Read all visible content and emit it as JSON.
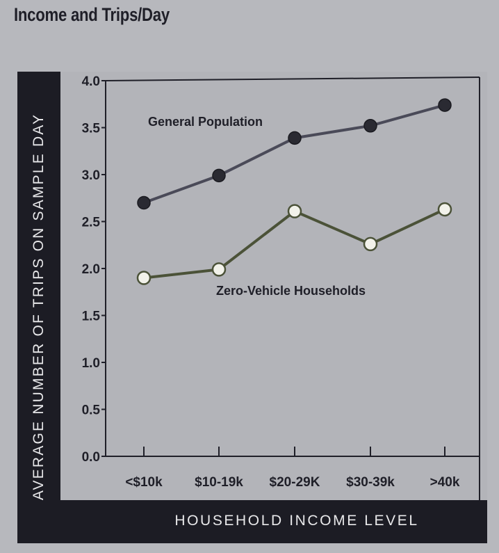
{
  "title": "Income and Trips/Day",
  "chart_data": {
    "type": "line",
    "title": "Income and Trips/Day",
    "xlabel": "HOUSEHOLD INCOME LEVEL",
    "ylabel": "AVERAGE NUMBER OF TRIPS ON SAMPLE DAY",
    "categories": [
      "<$10k",
      "$10-19k",
      "$20-29K",
      "$30-39k",
      ">40k"
    ],
    "ylim": [
      0,
      4.0
    ],
    "yticks": [
      "0.0",
      "0.5",
      "1.0",
      "1.5",
      "2.0",
      "2.5",
      "3.0",
      "3.5",
      "4.0"
    ],
    "grid": false,
    "series": [
      {
        "name": "General Population",
        "values": [
          2.7,
          2.99,
          3.39,
          3.52,
          3.74
        ],
        "line_color": "#4a4a58",
        "marker_fill": "#2a2a32"
      },
      {
        "name": "Zero-Vehicle Households",
        "values": [
          1.9,
          1.99,
          2.61,
          2.26,
          2.63
        ],
        "line_color": "#4b5238",
        "marker_fill": "#f2f2ea"
      }
    ]
  },
  "colors": {
    "background": "#b7b8bd",
    "label_bar": "#1c1c24",
    "label_text": "#e8e8ea"
  }
}
